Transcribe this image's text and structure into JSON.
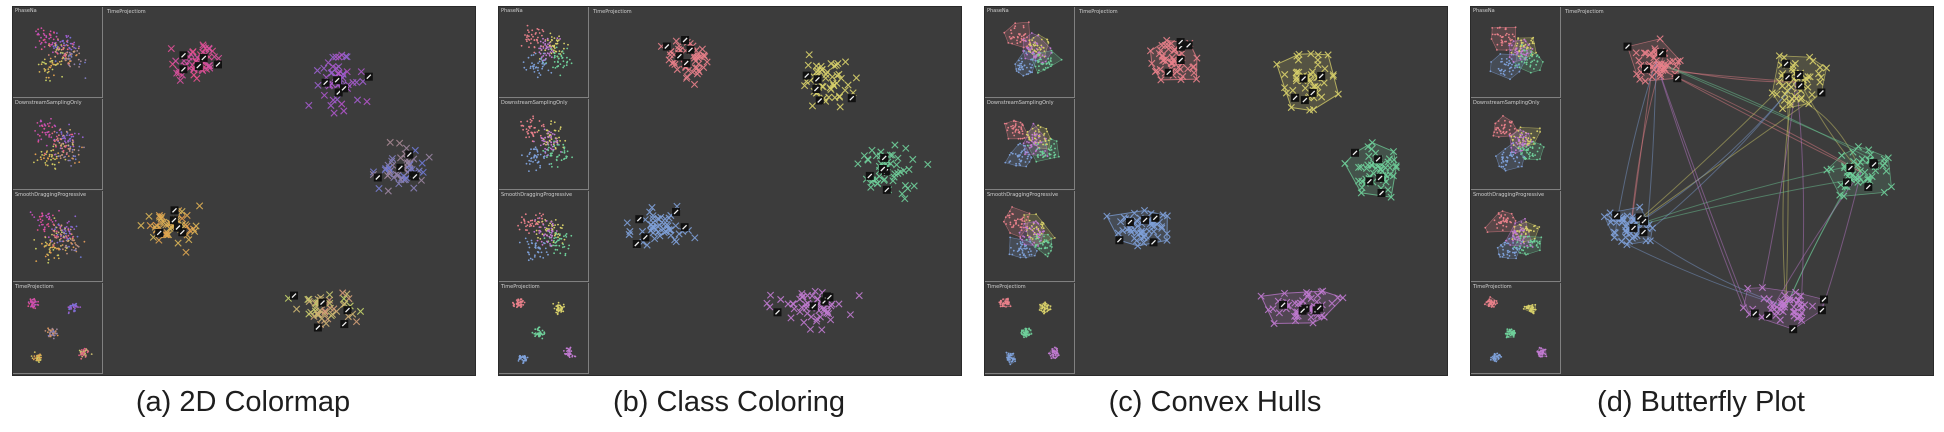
{
  "figure": {
    "panels": [
      {
        "id": "a",
        "caption": "(a) 2D Colormap",
        "mode": "colormap",
        "thumbnails": [
          "PhaseNa",
          "DownstreamSamplingOnly",
          "SmoothDraggingProgressive",
          "TimeProjectiom"
        ],
        "main_label": "TimeProjectiom",
        "colors": [
          "#e8508a",
          "#b552c8",
          "#6b78d8",
          "#e89a4a",
          "#c4d86a"
        ]
      },
      {
        "id": "b",
        "caption": "(b) Class Coloring",
        "mode": "class",
        "thumbnails": [
          "PhaseNa",
          "DownstreamSamplingOnly",
          "SmoothDraggingProgressive",
          "TimeProjectiom"
        ],
        "main_label": "TimeProjectiom",
        "colors": [
          "#e8808a",
          "#d8d06a",
          "#6fcf9a",
          "#7ea0d8",
          "#c07ad0"
        ]
      },
      {
        "id": "c",
        "caption": "(c) Convex Hulls",
        "mode": "hull",
        "thumbnails": [
          "PhaseNa",
          "DownstreamSamplingOnly",
          "SmoothDraggingProgressive",
          "TimeProjectiom"
        ],
        "main_label": "TimeProjectiom",
        "colors": [
          "#e8808a",
          "#d8d06a",
          "#6fcf9a",
          "#7ea0d8",
          "#c07ad0"
        ]
      },
      {
        "id": "d",
        "caption": "(d) Butterfly Plot",
        "mode": "butterfly",
        "thumbnails": [
          "PhaseNa",
          "DownstreamSamplingOnly",
          "SmoothDraggingProgressive",
          "TimeProjectiom"
        ],
        "main_label": "TimeProjectiom",
        "colors": [
          "#e8808a",
          "#d8d06a",
          "#6fcf9a",
          "#7ea0d8",
          "#c07ad0"
        ]
      }
    ]
  }
}
